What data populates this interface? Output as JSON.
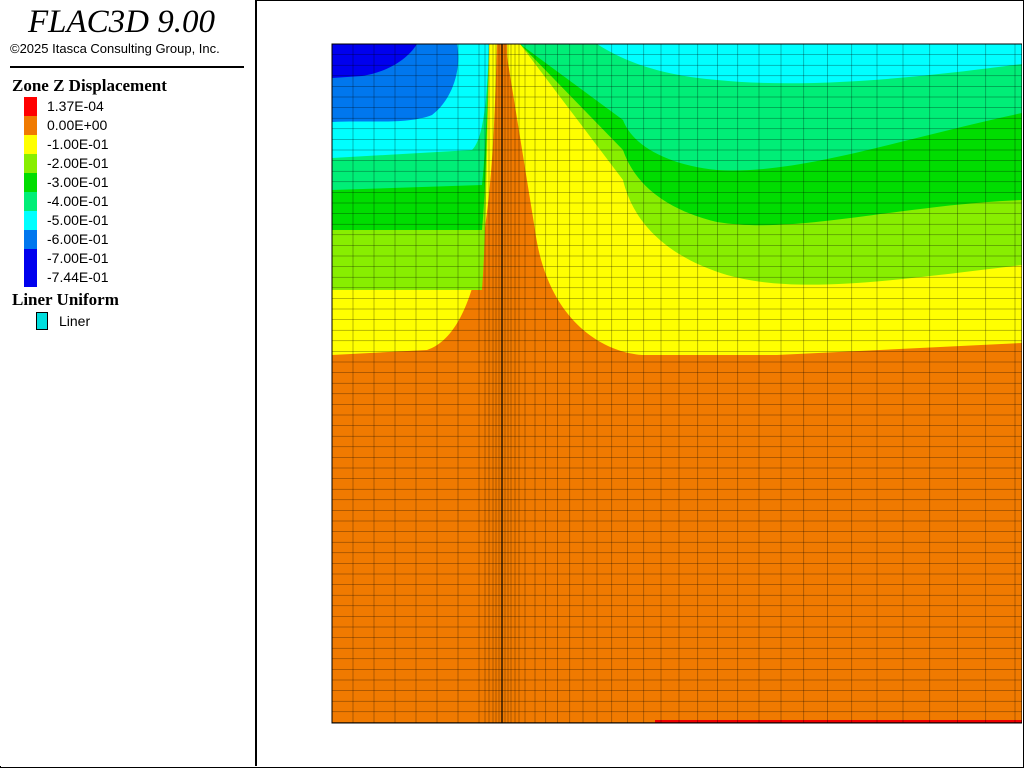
{
  "app": {
    "title": "FLAC3D 9.00",
    "copyright": "©2025 Itasca Consulting Group, Inc."
  },
  "legend": {
    "heading": "Zone Z Displacement",
    "entries": [
      {
        "label": "1.37E-04",
        "color": "#ff0000"
      },
      {
        "label": "0.00E+00",
        "color": "#f07a00"
      },
      {
        "label": "-1.00E-01",
        "color": "#ffff00"
      },
      {
        "label": "-2.00E-01",
        "color": "#88ee00"
      },
      {
        "label": "-3.00E-01",
        "color": "#00dd00"
      },
      {
        "label": "-4.00E-01",
        "color": "#00ee77"
      },
      {
        "label": "-5.00E-01",
        "color": "#00ffff"
      },
      {
        "label": "-6.00E-01",
        "color": "#0077ee"
      },
      {
        "label": "-7.00E-01",
        "color": "#0000ee"
      },
      {
        "label": "-7.44E-01",
        "color": "#0000ee"
      }
    ],
    "liner_heading": "Liner Uniform",
    "liner_label": "Liner",
    "liner_color": "#00dddd"
  }
}
